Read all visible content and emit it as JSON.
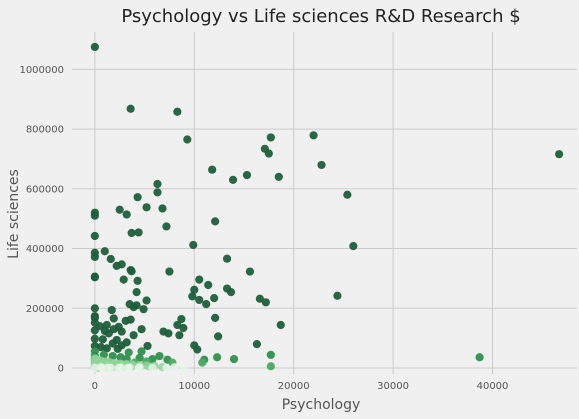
{
  "chart_data": {
    "type": "scatter",
    "title": "Psychology vs Life sciences R&D Research $",
    "xlabel": "Psychology",
    "ylabel": "Life sciences",
    "xlim": [
      -2300,
      48500
    ],
    "ylim": [
      -20000,
      1125000
    ],
    "x_ticks": [
      0,
      10000,
      20000,
      30000,
      40000
    ],
    "y_ticks": [
      0,
      200000,
      400000,
      600000,
      800000,
      1000000
    ],
    "grid": true,
    "colors": {
      "dark": "#1e5e3a",
      "mid": "#2f8f4e",
      "light": "#8fd49b",
      "lightest": "#e6f5e6"
    },
    "points": [
      [
        0,
        1075000
      ],
      [
        3600,
        868000
      ],
      [
        8300,
        858000
      ],
      [
        9300,
        765000
      ],
      [
        17700,
        772000
      ],
      [
        22000,
        779000
      ],
      [
        17100,
        734000
      ],
      [
        17500,
        718000
      ],
      [
        46700,
        716000
      ],
      [
        22800,
        680000
      ],
      [
        11800,
        664000
      ],
      [
        15300,
        646000
      ],
      [
        18500,
        640000
      ],
      [
        13900,
        630000
      ],
      [
        6300,
        616000
      ],
      [
        6300,
        588000
      ],
      [
        4300,
        572000
      ],
      [
        25400,
        580000
      ],
      [
        6800,
        534000
      ],
      [
        2500,
        530000
      ],
      [
        5200,
        538000
      ],
      [
        0,
        520000
      ],
      [
        0,
        510000
      ],
      [
        3200,
        514000
      ],
      [
        12100,
        491000
      ],
      [
        7200,
        474000
      ],
      [
        4400,
        454000
      ],
      [
        3700,
        452000
      ],
      [
        0,
        442000
      ],
      [
        26000,
        408000
      ],
      [
        9900,
        412000
      ],
      [
        1000,
        391000
      ],
      [
        0,
        386000
      ],
      [
        0,
        372000
      ],
      [
        1600,
        365000
      ],
      [
        13300,
        366000
      ],
      [
        2200,
        342000
      ],
      [
        2700,
        347000
      ],
      [
        3600,
        328000
      ],
      [
        3700,
        324000
      ],
      [
        15600,
        323000
      ],
      [
        7500,
        323000
      ],
      [
        0,
        306000
      ],
      [
        0,
        304000
      ],
      [
        2900,
        296000
      ],
      [
        10500,
        296000
      ],
      [
        4300,
        292000
      ],
      [
        11400,
        278000
      ],
      [
        13300,
        266000
      ],
      [
        10000,
        262000
      ],
      [
        4200,
        254000
      ],
      [
        13700,
        254000
      ],
      [
        9800,
        240000
      ],
      [
        24400,
        242000
      ],
      [
        12000,
        234000
      ],
      [
        16600,
        232000
      ],
      [
        10500,
        228000
      ],
      [
        17200,
        220000
      ],
      [
        5200,
        226000
      ],
      [
        11200,
        214000
      ],
      [
        3500,
        214000
      ],
      [
        4200,
        210000
      ],
      [
        0,
        200000
      ],
      [
        3900,
        204000
      ],
      [
        4900,
        197000
      ],
      [
        1700,
        194000
      ],
      [
        0,
        174000
      ],
      [
        0,
        168000
      ],
      [
        12100,
        168000
      ],
      [
        1900,
        166000
      ],
      [
        8700,
        164000
      ],
      [
        3600,
        162000
      ],
      [
        3100,
        158000
      ],
      [
        0,
        152000
      ],
      [
        1200,
        144000
      ],
      [
        500,
        140000
      ],
      [
        18700,
        144000
      ],
      [
        8300,
        144000
      ],
      [
        2400,
        138000
      ],
      [
        8900,
        134000
      ],
      [
        4700,
        130000
      ],
      [
        1900,
        130000
      ],
      [
        0,
        126000
      ],
      [
        1000,
        124000
      ],
      [
        2700,
        122000
      ],
      [
        6900,
        122000
      ],
      [
        1400,
        116000
      ],
      [
        3900,
        110000
      ],
      [
        7400,
        116000
      ],
      [
        8500,
        110000
      ],
      [
        12400,
        106000
      ],
      [
        0,
        98000
      ],
      [
        800,
        96000
      ],
      [
        2200,
        94000
      ],
      [
        3200,
        86000
      ],
      [
        1800,
        82000
      ],
      [
        16300,
        80000
      ],
      [
        10000,
        76000
      ],
      [
        0,
        74000
      ],
      [
        2700,
        76000
      ],
      [
        5300,
        74000
      ],
      [
        600,
        70000
      ],
      [
        1200,
        66000
      ],
      [
        2300,
        64000
      ],
      [
        10300,
        62000
      ],
      [
        4700,
        56000
      ],
      [
        0,
        56000
      ],
      [
        3400,
        52000
      ],
      [
        17700,
        44000
      ],
      [
        38700,
        36000
      ],
      [
        14000,
        30000
      ],
      [
        11000,
        28000
      ],
      [
        12300,
        36000
      ],
      [
        6500,
        40000
      ],
      [
        5800,
        30000
      ],
      [
        4500,
        34000
      ],
      [
        7300,
        28000
      ],
      [
        3200,
        30000
      ],
      [
        5200,
        22000
      ],
      [
        7800,
        18000
      ],
      [
        10800,
        18000
      ],
      [
        17700,
        6000
      ],
      [
        900,
        44000
      ],
      [
        1800,
        40000
      ],
      [
        0,
        40000
      ],
      [
        2600,
        36000
      ],
      [
        4000,
        18000
      ],
      [
        3300,
        14000
      ],
      [
        1500,
        20000
      ],
      [
        800,
        26000
      ],
      [
        0,
        30000
      ],
      [
        0,
        20000
      ],
      [
        500,
        12000
      ],
      [
        2200,
        10000
      ],
      [
        1000,
        8000
      ],
      [
        0,
        5000
      ],
      [
        300,
        2000
      ],
      [
        1400,
        3000
      ]
    ],
    "light_points": [
      [
        0,
        32000
      ],
      [
        200,
        28000
      ],
      [
        600,
        25000
      ],
      [
        1000,
        22000
      ],
      [
        1500,
        19000
      ],
      [
        2000,
        17000
      ],
      [
        2600,
        15000
      ],
      [
        3200,
        13000
      ],
      [
        3800,
        11000
      ],
      [
        4500,
        10000
      ],
      [
        5200,
        8000
      ],
      [
        6000,
        7000
      ],
      [
        0,
        22000
      ],
      [
        300,
        19000
      ],
      [
        800,
        16000
      ],
      [
        1300,
        13000
      ],
      [
        1900,
        11000
      ],
      [
        2500,
        9000
      ],
      [
        3100,
        7500
      ],
      [
        3800,
        6000
      ],
      [
        4600,
        5000
      ],
      [
        5600,
        4000
      ],
      [
        6800,
        3000
      ],
      [
        8000,
        2500
      ],
      [
        0,
        14000
      ],
      [
        400,
        11000
      ],
      [
        900,
        9000
      ],
      [
        1500,
        7000
      ],
      [
        2100,
        5500
      ],
      [
        2800,
        4500
      ],
      [
        3600,
        3500
      ],
      [
        4500,
        2500
      ],
      [
        0,
        8000
      ],
      [
        500,
        6000
      ],
      [
        1100,
        4500
      ],
      [
        1800,
        3000
      ],
      [
        2600,
        2000
      ],
      [
        3500,
        1500
      ],
      [
        0,
        4000
      ],
      [
        600,
        2500
      ],
      [
        1300,
        1500
      ],
      [
        0,
        1000
      ],
      [
        700,
        800
      ],
      [
        1600,
        500
      ],
      [
        2400,
        300
      ],
      [
        3300,
        200
      ],
      [
        4400,
        200
      ],
      [
        5800,
        300
      ],
      [
        7200,
        400
      ],
      [
        9000,
        500
      ]
    ]
  }
}
